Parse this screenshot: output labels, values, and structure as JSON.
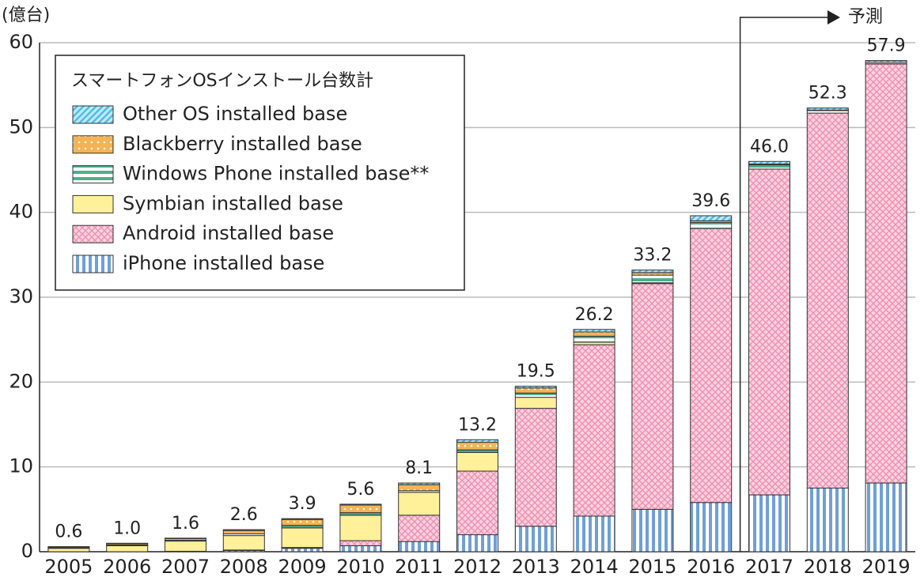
{
  "chart_data": {
    "type": "stacked-bar",
    "y_unit": "(億台)",
    "legend_title": "スマートフォンOSインストール台数計",
    "annotation": "予測",
    "categories": [
      "2005",
      "2006",
      "2007",
      "2008",
      "2009",
      "2010",
      "2011",
      "2012",
      "2013",
      "2014",
      "2015",
      "2016",
      "2017",
      "2018",
      "2019"
    ],
    "series": [
      {
        "name": "iPhone installed base",
        "color": "#6f9fd6",
        "pattern": "vertical",
        "values": [
          0,
          0,
          0.05,
          0.15,
          0.4,
          0.7,
          1.2,
          2.0,
          3.0,
          4.2,
          5.0,
          5.8,
          6.7,
          7.5,
          8.1
        ]
      },
      {
        "name": "Android installed base",
        "color": "#f08fb0",
        "pattern": "crosshatch",
        "values": [
          0,
          0,
          0,
          0.05,
          0.1,
          0.6,
          3.1,
          7.5,
          13.9,
          20.2,
          26.6,
          32.3,
          38.4,
          44.2,
          49.4
        ]
      },
      {
        "name": "Symbian installed base",
        "color": "#fff09a",
        "pattern": "solid",
        "values": [
          0.4,
          0.7,
          1.2,
          1.7,
          2.3,
          3.0,
          2.7,
          2.2,
          1.3,
          0.3,
          0.1,
          0,
          0,
          0,
          0
        ]
      },
      {
        "name": "Windows Phone installed base**",
        "color": "#4fae8c",
        "pattern": "horizontal",
        "values": [
          0.05,
          0.1,
          0.1,
          0.2,
          0.3,
          0.3,
          0.2,
          0.3,
          0.5,
          0.7,
          0.9,
          0.7,
          0.5,
          0.3,
          0.2
        ]
      },
      {
        "name": "Blackberry installed base",
        "color": "#f5b355",
        "pattern": "dots",
        "values": [
          0.1,
          0.15,
          0.2,
          0.4,
          0.7,
          0.9,
          0.7,
          0.9,
          0.6,
          0.5,
          0.3,
          0.2,
          0.1,
          0.05,
          0
        ]
      },
      {
        "name": "Other OS installed base",
        "color": "#4dbde6",
        "pattern": "diagonal",
        "values": [
          0.05,
          0.05,
          0.05,
          0.1,
          0.1,
          0.1,
          0.2,
          0.3,
          0.2,
          0.3,
          0.3,
          0.6,
          0.3,
          0.25,
          0.2
        ]
      }
    ],
    "totals": [
      0.6,
      1.0,
      1.6,
      2.6,
      3.9,
      5.6,
      8.1,
      13.2,
      19.5,
      26.2,
      33.2,
      39.6,
      46.0,
      52.3,
      57.9
    ],
    "total_labels": [
      "0.6",
      "1.0",
      "1.6",
      "2.6",
      "3.9",
      "5.6",
      "8.1",
      "13.2",
      "19.5",
      "26.2",
      "33.2",
      "39.6",
      "46.0",
      "52.3",
      "57.9"
    ],
    "ylim": [
      0,
      60
    ],
    "yticks": [
      0,
      10,
      20,
      30,
      40,
      50,
      60
    ],
    "grid": true,
    "annotation_from": "2017"
  }
}
